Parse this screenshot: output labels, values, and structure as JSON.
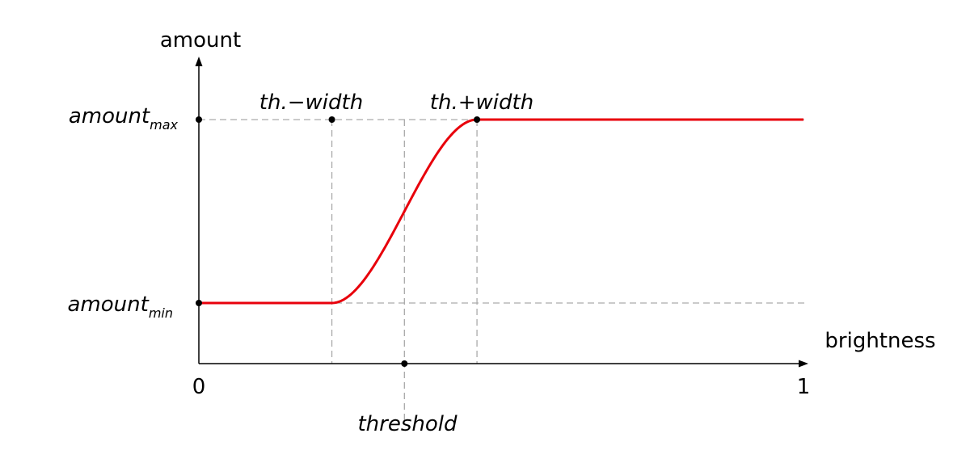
{
  "chart_data": {
    "type": "line",
    "xlabel": "brightness",
    "ylabel": "amount",
    "x_ticks": [
      "0",
      "1"
    ],
    "y_ticks": [
      {
        "base": "amount",
        "sub": "max"
      },
      {
        "base": "amount",
        "sub": "min"
      }
    ],
    "annotations": {
      "threshold": "threshold",
      "lower_edge": "th.−width",
      "upper_edge": "th.+width"
    },
    "series": [
      {
        "points": [
          [
            0,
            0.0
          ],
          [
            0.22,
            0.0
          ],
          [
            0.34,
            0.5
          ],
          [
            0.46,
            1.0
          ],
          [
            1,
            1.0
          ]
        ]
      }
    ],
    "xlim": [
      0,
      1
    ],
    "ylim": [
      0,
      1
    ],
    "colors": {
      "curve": "#e8000b",
      "guides": "#aaaaaa",
      "axes": "#000000"
    },
    "grid": false
  }
}
